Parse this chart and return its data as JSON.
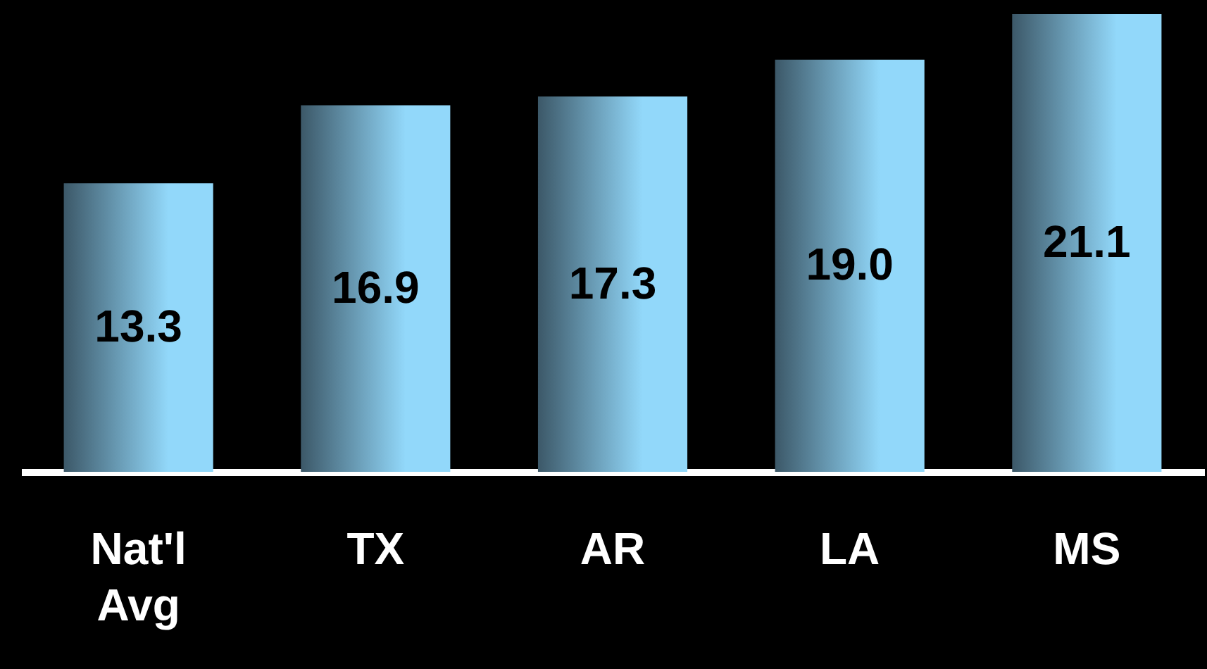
{
  "chart_data": {
    "type": "bar",
    "categories": [
      "Nat'l Avg",
      "TX",
      "AR",
      "LA",
      "MS"
    ],
    "values": [
      13.3,
      16.9,
      17.3,
      19.0,
      21.1
    ],
    "value_labels": [
      "13.3",
      "16.9",
      "17.3",
      "19.0",
      "21.1"
    ],
    "color": "#92d8fa"
  }
}
